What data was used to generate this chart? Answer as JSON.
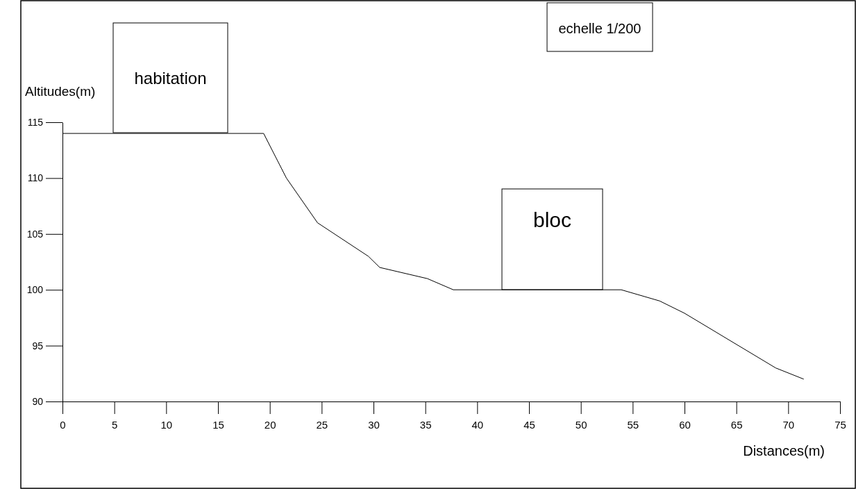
{
  "chart_data": {
    "type": "line",
    "xlabel": "Distances(m)",
    "ylabel": "Altitudes(m)",
    "series": [
      {
        "color": "#000000",
        "x": [
          0,
          19.4,
          21.6,
          24.6,
          29.5,
          30.6,
          35.2,
          37.7,
          53.9,
          57.6,
          60,
          68.8,
          71.5
        ],
        "values": [
          114,
          114,
          110,
          106,
          103,
          102,
          101,
          100,
          100,
          99,
          97.9,
          93,
          92
        ]
      }
    ],
    "xlim": [
      0,
      75
    ],
    "ylim": [
      90,
      115
    ],
    "xticks": [
      0,
      5,
      10,
      15,
      20,
      25,
      30,
      35,
      40,
      45,
      50,
      55,
      60,
      65,
      70,
      75
    ],
    "yticks": [
      90,
      95,
      100,
      105,
      110,
      115
    ],
    "grid": false,
    "annotations": [
      "habitation",
      "bloc",
      "echelle 1/200"
    ]
  }
}
